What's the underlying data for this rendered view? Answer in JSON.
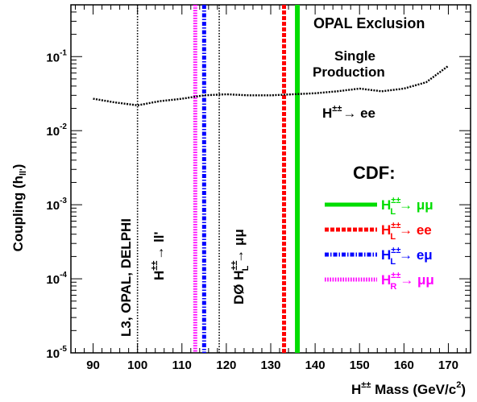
{
  "chart_data": {
    "type": "line",
    "x_axis": {
      "label": "H",
      "label_sup": "±±",
      "label_rest": " Mass (GeV/c",
      "label_sup2": "2",
      "label_end": ")",
      "range": [
        85,
        175
      ],
      "ticks": [
        90,
        100,
        110,
        120,
        130,
        140,
        150,
        160,
        170
      ]
    },
    "y_axis": {
      "label": "Coupling (h",
      "label_sub": "ll'",
      "label_end": ")",
      "scale": "log",
      "range": [
        1e-05,
        0.5
      ],
      "ticks": [
        {
          "value": 1e-05,
          "base": "10",
          "exp": "-5"
        },
        {
          "value": 0.0001,
          "base": "10",
          "exp": "-4"
        },
        {
          "value": 0.001,
          "base": "10",
          "exp": "-3"
        },
        {
          "value": 0.01,
          "base": "10",
          "exp": "-2"
        },
        {
          "value": 0.1,
          "base": "10",
          "exp": "-1"
        }
      ]
    },
    "opal_curve": {
      "x": [
        90,
        95,
        100,
        105,
        110,
        115,
        120,
        125,
        130,
        135,
        140,
        145,
        150,
        155,
        160,
        165,
        170
      ],
      "y": [
        0.027,
        0.024,
        0.022,
        0.025,
        0.027,
        0.03,
        0.031,
        0.03,
        0.03,
        0.031,
        0.032,
        0.034,
        0.037,
        0.034,
        0.037,
        0.045,
        0.075
      ],
      "color": "#000000"
    },
    "lep_lines": [
      {
        "x": 100,
        "color": "#000000"
      },
      {
        "x": 118.4,
        "color": "#000000"
      }
    ],
    "cdf_lines": [
      {
        "x": 136.0,
        "color": "#00dd00",
        "style": "solid"
      },
      {
        "x": 133.0,
        "color": "#ff0000",
        "style": "dashed"
      },
      {
        "x": 115.0,
        "color": "#0000ff",
        "style": "dashdot"
      },
      {
        "x": 113.0,
        "color": "#ff00ff",
        "style": "dotted"
      }
    ],
    "annotations": {
      "opal_title": "OPAL Exclusion",
      "single_1": "Single",
      "single_2": "Production",
      "opal_channel_h": "H",
      "opal_channel_sup": "±±",
      "opal_channel_rest": "→ ee",
      "lep": "L3, OPAL, DELPHI",
      "lep_channel_h": "H",
      "lep_channel_sup": "±±",
      "lep_channel_rest": "→ ll'",
      "d0_prefix": "DØ H",
      "d0_sup": "±±",
      "d0_sub": "L",
      "d0_rest": "→ μμ",
      "cdf_title": "CDF:"
    },
    "legend": [
      {
        "h": "H",
        "sup": "±±",
        "sub": "L",
        "rest": "→ μμ",
        "color": "#00dd00",
        "style": "solid"
      },
      {
        "h": "H",
        "sup": "±±",
        "sub": "L",
        "rest": "→ ee",
        "color": "#ff0000",
        "style": "dashed"
      },
      {
        "h": "H",
        "sup": "±±",
        "sub": "L",
        "rest": "→ eμ",
        "color": "#0000ff",
        "style": "dashdot"
      },
      {
        "h": "H",
        "sup": "±±",
        "sub": "R",
        "rest": "→ μμ",
        "color": "#ff00ff",
        "style": "dotted"
      }
    ]
  }
}
